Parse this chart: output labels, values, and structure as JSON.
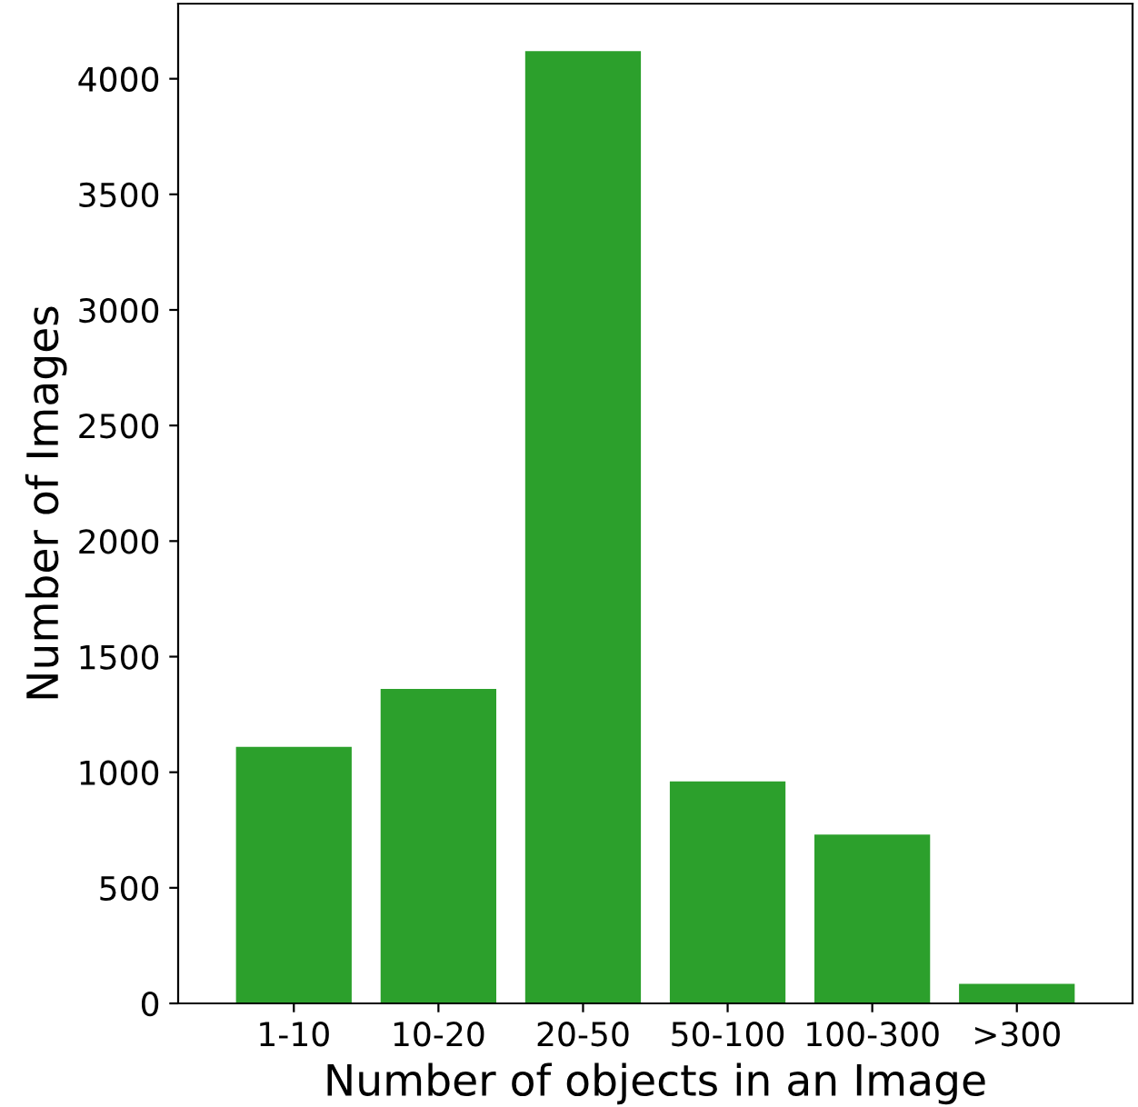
{
  "chart_data": {
    "type": "bar",
    "xlabel": "Number of objects in an Image",
    "ylabel": "Number of Images",
    "categories": [
      "1-10",
      "10-20",
      "20-50",
      "50-100",
      "100-300",
      ">300"
    ],
    "values": [
      1110,
      1360,
      4120,
      960,
      730,
      85
    ],
    "color": "#2ca02c",
    "ylim": [
      0,
      4325
    ],
    "yticks": [
      0,
      500,
      1000,
      1500,
      2000,
      2500,
      3000,
      3500,
      4000
    ],
    "grid": false
  }
}
